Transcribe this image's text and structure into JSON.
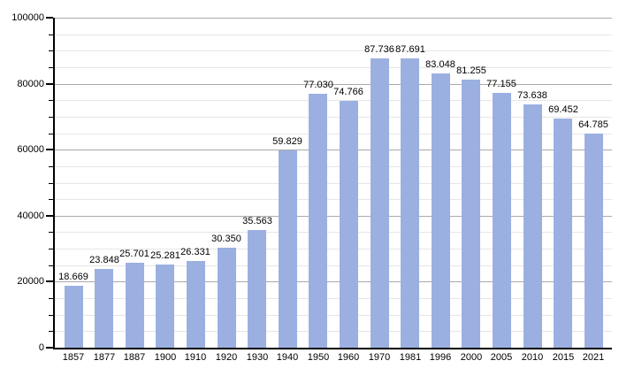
{
  "chart_data": {
    "type": "bar",
    "title": "",
    "xlabel": "",
    "ylabel": "",
    "categories": [
      "1857",
      "1877",
      "1887",
      "1900",
      "1910",
      "1920",
      "1930",
      "1940",
      "1950",
      "1960",
      "1970",
      "1981",
      "1996",
      "2000",
      "2005",
      "2010",
      "2015",
      "2021"
    ],
    "values": [
      18669,
      23848,
      25701,
      25281,
      26331,
      30350,
      35563,
      59829,
      77030,
      74766,
      87736,
      87691,
      83048,
      81255,
      77155,
      73638,
      69452,
      64785
    ],
    "value_labels": [
      "18.669",
      "23.848",
      "25.701",
      "25.281",
      "26.331",
      "30.350",
      "35.563",
      "59.829",
      "77.030",
      "74.766",
      "87.736",
      "87.691",
      "83.048",
      "81.255",
      "77.155",
      "73.638",
      "69.452",
      "64.785"
    ],
    "ylim": [
      0,
      100000
    ],
    "ytick_interval": 20000,
    "yminor_interval": 5000,
    "ytick_labels": [
      "0",
      "20000",
      "40000",
      "60000",
      "80000",
      "100000"
    ],
    "grid": "horizontal, major and minor",
    "legend": "none",
    "colors": {
      "bar_fill": "#9bb0e1",
      "major_grid": "#aaaaaa",
      "minor_grid": "#e6e6e6",
      "axis": "#000000",
      "text": "#000000",
      "background": "#ffffff"
    }
  }
}
